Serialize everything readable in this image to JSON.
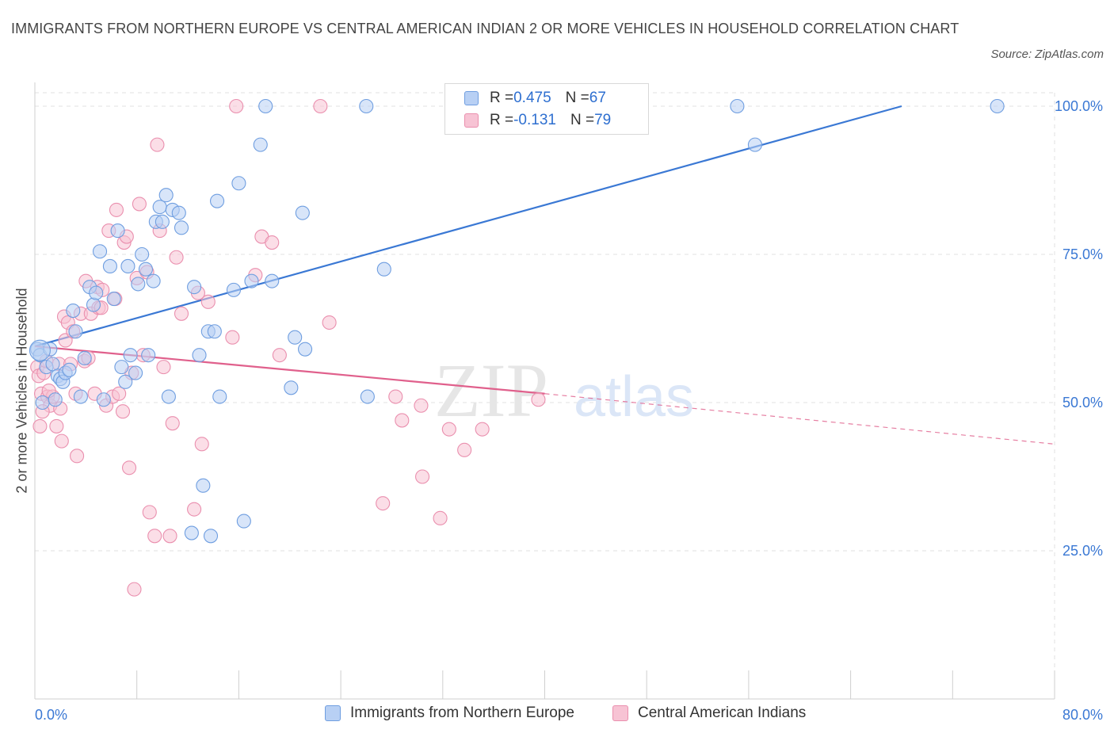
{
  "header": {
    "title": "IMMIGRANTS FROM NORTHERN EUROPE VS CENTRAL AMERICAN INDIAN 2 OR MORE VEHICLES IN HOUSEHOLD CORRELATION CHART",
    "source": "Source: ZipAtlas.com"
  },
  "legend_stats": [
    {
      "r_label": "R = ",
      "r_value": "0.475",
      "n_label": "N = ",
      "n_value": "67"
    },
    {
      "r_label": "R = ",
      "r_value": "-0.131",
      "n_label": "N = ",
      "n_value": "79"
    }
  ],
  "watermark": {
    "zip": "ZIP",
    "atlas": "atlas"
  },
  "colors": {
    "blue_fill": "#b8d0f4",
    "blue_stroke": "#6f9ee0",
    "blue_line": "#3a78d4",
    "pink_fill": "#f7c3d4",
    "pink_stroke": "#ea8fae",
    "pink_line": "#e0608c",
    "tick_label": "#3a78d4",
    "grid": "#e2e2e2"
  },
  "chart_data": {
    "type": "scatter",
    "title": "IMMIGRANTS FROM NORTHERN EUROPE VS CENTRAL AMERICAN INDIAN 2 OR MORE VEHICLES IN HOUSEHOLD CORRELATION CHART",
    "xlabel": "",
    "ylabel": "2 or more Vehicles in Household",
    "xlim": [
      0,
      80
    ],
    "ylim": [
      0,
      100
    ],
    "x_tick_labels": [
      {
        "value": 0,
        "label": "0.0%"
      },
      {
        "value": 80,
        "label": "80.0%"
      }
    ],
    "y_tick_labels": [
      {
        "value": 100,
        "label": "100.0%"
      },
      {
        "value": 75,
        "label": "75.0%"
      },
      {
        "value": 50,
        "label": "50.0%"
      },
      {
        "value": 25,
        "label": "25.0%"
      }
    ],
    "x_minor_ticks": [
      0,
      8,
      16,
      24,
      32,
      40,
      48,
      56,
      64,
      72,
      80
    ],
    "grid": true,
    "legend_position": "bottom",
    "series": [
      {
        "name": "Immigrants from Northern Europe",
        "color": "#6f9ee0",
        "r": 0.475,
        "n": 67,
        "trend": {
          "x": [
            0,
            68
          ],
          "y": [
            59.5,
            100
          ]
        },
        "points": [
          {
            "x": 0.2,
            "y": 59
          },
          {
            "x": 0.4,
            "y": 58
          },
          {
            "x": 0.6,
            "y": 50
          },
          {
            "x": 0.9,
            "y": 56
          },
          {
            "x": 1.2,
            "y": 59
          },
          {
            "x": 1.4,
            "y": 56.5
          },
          {
            "x": 1.6,
            "y": 50.5
          },
          {
            "x": 1.8,
            "y": 54.5
          },
          {
            "x": 2.0,
            "y": 54
          },
          {
            "x": 2.2,
            "y": 53.5
          },
          {
            "x": 2.4,
            "y": 55
          },
          {
            "x": 2.7,
            "y": 55.5
          },
          {
            "x": 3.0,
            "y": 65.5
          },
          {
            "x": 3.2,
            "y": 62
          },
          {
            "x": 3.6,
            "y": 51
          },
          {
            "x": 3.9,
            "y": 57.5
          },
          {
            "x": 4.3,
            "y": 69.5
          },
          {
            "x": 4.6,
            "y": 66.5
          },
          {
            "x": 4.8,
            "y": 68.5
          },
          {
            "x": 5.1,
            "y": 75.5
          },
          {
            "x": 5.4,
            "y": 50.5
          },
          {
            "x": 5.9,
            "y": 73
          },
          {
            "x": 6.2,
            "y": 67.5
          },
          {
            "x": 6.5,
            "y": 79
          },
          {
            "x": 6.8,
            "y": 56
          },
          {
            "x": 7.1,
            "y": 53.5
          },
          {
            "x": 7.3,
            "y": 73
          },
          {
            "x": 7.5,
            "y": 58
          },
          {
            "x": 7.9,
            "y": 55
          },
          {
            "x": 8.1,
            "y": 70
          },
          {
            "x": 8.4,
            "y": 75
          },
          {
            "x": 8.7,
            "y": 72.5
          },
          {
            "x": 8.9,
            "y": 58
          },
          {
            "x": 9.5,
            "y": 80.5
          },
          {
            "x": 9.3,
            "y": 70.5
          },
          {
            "x": 9.8,
            "y": 83
          },
          {
            "x": 10.0,
            "y": 80.5
          },
          {
            "x": 10.3,
            "y": 85
          },
          {
            "x": 10.5,
            "y": 51
          },
          {
            "x": 10.8,
            "y": 82.5
          },
          {
            "x": 11.3,
            "y": 82
          },
          {
            "x": 11.5,
            "y": 79.5
          },
          {
            "x": 12.3,
            "y": 28
          },
          {
            "x": 12.5,
            "y": 69.5
          },
          {
            "x": 12.9,
            "y": 58
          },
          {
            "x": 13.2,
            "y": 36
          },
          {
            "x": 13.6,
            "y": 62
          },
          {
            "x": 13.8,
            "y": 27.5
          },
          {
            "x": 14.1,
            "y": 62
          },
          {
            "x": 14.3,
            "y": 84
          },
          {
            "x": 14.5,
            "y": 51
          },
          {
            "x": 15.6,
            "y": 69
          },
          {
            "x": 16.0,
            "y": 87
          },
          {
            "x": 16.4,
            "y": 30
          },
          {
            "x": 17.0,
            "y": 70.5
          },
          {
            "x": 17.7,
            "y": 93.5
          },
          {
            "x": 18.1,
            "y": 100
          },
          {
            "x": 18.6,
            "y": 70.5
          },
          {
            "x": 20.1,
            "y": 52.5
          },
          {
            "x": 20.4,
            "y": 61
          },
          {
            "x": 21.0,
            "y": 82
          },
          {
            "x": 21.2,
            "y": 59
          },
          {
            "x": 26.0,
            "y": 100
          },
          {
            "x": 26.1,
            "y": 51
          },
          {
            "x": 27.4,
            "y": 72.5
          },
          {
            "x": 55.1,
            "y": 100
          },
          {
            "x": 56.5,
            "y": 93.5
          },
          {
            "x": 75.5,
            "y": 100
          }
        ]
      },
      {
        "name": "Central American Indians",
        "color": "#ea8fae",
        "r": -0.131,
        "n": 79,
        "trend": {
          "x": [
            0,
            40
          ],
          "y": [
            59.5,
            51.5
          ]
        },
        "trend_dashed": {
          "x": [
            40,
            80
          ],
          "y": [
            51.5,
            43
          ]
        },
        "points": [
          {
            "x": 0.2,
            "y": 56
          },
          {
            "x": 0.3,
            "y": 54.5
          },
          {
            "x": 0.4,
            "y": 46
          },
          {
            "x": 0.5,
            "y": 51.5
          },
          {
            "x": 0.7,
            "y": 55
          },
          {
            "x": 0.9,
            "y": 57
          },
          {
            "x": 1.0,
            "y": 51
          },
          {
            "x": 1.2,
            "y": 49.5
          },
          {
            "x": 1.4,
            "y": 51
          },
          {
            "x": 1.7,
            "y": 46
          },
          {
            "x": 1.9,
            "y": 56.5
          },
          {
            "x": 2.1,
            "y": 43.5
          },
          {
            "x": 2.3,
            "y": 64.5
          },
          {
            "x": 2.4,
            "y": 60.5
          },
          {
            "x": 2.6,
            "y": 63.5
          },
          {
            "x": 2.8,
            "y": 56.5
          },
          {
            "x": 3.0,
            "y": 62
          },
          {
            "x": 3.2,
            "y": 51.5
          },
          {
            "x": 3.3,
            "y": 41
          },
          {
            "x": 3.6,
            "y": 65
          },
          {
            "x": 3.9,
            "y": 57
          },
          {
            "x": 4.0,
            "y": 70.5
          },
          {
            "x": 4.2,
            "y": 57.5
          },
          {
            "x": 4.4,
            "y": 65
          },
          {
            "x": 4.7,
            "y": 51.5
          },
          {
            "x": 4.9,
            "y": 69.5
          },
          {
            "x": 5.0,
            "y": 66
          },
          {
            "x": 5.2,
            "y": 66
          },
          {
            "x": 5.3,
            "y": 69
          },
          {
            "x": 5.6,
            "y": 49.5
          },
          {
            "x": 5.8,
            "y": 79
          },
          {
            "x": 6.1,
            "y": 51
          },
          {
            "x": 6.3,
            "y": 67.5
          },
          {
            "x": 6.4,
            "y": 82.5
          },
          {
            "x": 6.6,
            "y": 51.5
          },
          {
            "x": 6.9,
            "y": 48.5
          },
          {
            "x": 7.0,
            "y": 77
          },
          {
            "x": 7.2,
            "y": 78
          },
          {
            "x": 7.4,
            "y": 39
          },
          {
            "x": 7.6,
            "y": 55
          },
          {
            "x": 7.8,
            "y": 18.5
          },
          {
            "x": 8.0,
            "y": 71
          },
          {
            "x": 8.2,
            "y": 83.5
          },
          {
            "x": 8.5,
            "y": 58
          },
          {
            "x": 8.8,
            "y": 72
          },
          {
            "x": 9.0,
            "y": 31.5
          },
          {
            "x": 9.4,
            "y": 27.5
          },
          {
            "x": 9.6,
            "y": 93.5
          },
          {
            "x": 9.8,
            "y": 79
          },
          {
            "x": 10.1,
            "y": 56
          },
          {
            "x": 10.6,
            "y": 27.5
          },
          {
            "x": 10.8,
            "y": 46.5
          },
          {
            "x": 11.1,
            "y": 74.5
          },
          {
            "x": 11.5,
            "y": 65
          },
          {
            "x": 12.5,
            "y": 32
          },
          {
            "x": 12.8,
            "y": 68.5
          },
          {
            "x": 13.1,
            "y": 43
          },
          {
            "x": 13.6,
            "y": 67
          },
          {
            "x": 15.5,
            "y": 61
          },
          {
            "x": 15.8,
            "y": 100
          },
          {
            "x": 17.3,
            "y": 71.5
          },
          {
            "x": 17.8,
            "y": 78
          },
          {
            "x": 18.6,
            "y": 77
          },
          {
            "x": 19.2,
            "y": 58
          },
          {
            "x": 22.4,
            "y": 100
          },
          {
            "x": 23.1,
            "y": 63.5
          },
          {
            "x": 27.3,
            "y": 33
          },
          {
            "x": 28.3,
            "y": 51
          },
          {
            "x": 28.8,
            "y": 47
          },
          {
            "x": 30.3,
            "y": 49.5
          },
          {
            "x": 30.4,
            "y": 37.5
          },
          {
            "x": 31.8,
            "y": 30.5
          },
          {
            "x": 32.5,
            "y": 45.5
          },
          {
            "x": 33.7,
            "y": 42
          },
          {
            "x": 35.1,
            "y": 45.5
          },
          {
            "x": 39.5,
            "y": 50.5
          },
          {
            "x": 0.6,
            "y": 48.5
          },
          {
            "x": 1.1,
            "y": 52
          },
          {
            "x": 2.0,
            "y": 49
          }
        ]
      }
    ]
  }
}
